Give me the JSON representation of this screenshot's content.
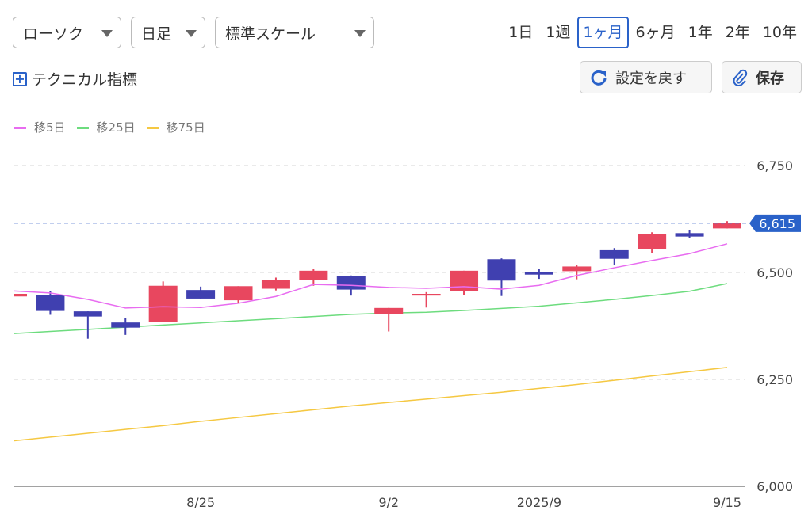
{
  "toolbar": {
    "chart_type": "ローソク",
    "interval": "日足",
    "scale": "標準スケール",
    "periods": [
      "1日",
      "1週",
      "1ヶ月",
      "6ヶ月",
      "1年",
      "2年",
      "10年"
    ],
    "active_period": "1ヶ月",
    "technical_label": "テクニカル指標",
    "reset_label": "設定を戻す",
    "save_label": "保存"
  },
  "colors": {
    "up": "#e8475f",
    "down": "#4040b0",
    "ma5": "#e86cf0",
    "ma25": "#6ddc7e",
    "ma75": "#f5c842",
    "accent": "#2a62c9"
  },
  "chart_data": {
    "type": "candlestick",
    "legend": [
      {
        "name": "移5日",
        "color": "#e86cf0"
      },
      {
        "name": "移25日",
        "color": "#6ddc7e"
      },
      {
        "name": "移75日",
        "color": "#f5c842"
      }
    ],
    "ylim": [
      6000,
      6750
    ],
    "yticks": [
      {
        "value": 6750,
        "label": "6,750"
      },
      {
        "value": 6500,
        "label": "6,500"
      },
      {
        "value": 6250,
        "label": "6,250"
      },
      {
        "value": 6000,
        "label": "6,000"
      }
    ],
    "last_price": {
      "value": 6615,
      "label": "6,615"
    },
    "xticks": [
      {
        "index": 5,
        "label": "8/25"
      },
      {
        "index": 10,
        "label": "9/2"
      },
      {
        "index": 14,
        "label": "2025/9"
      },
      {
        "index": 19,
        "label": "9/15"
      }
    ],
    "candles": [
      {
        "o": 6444,
        "h": 6457,
        "l": 6440,
        "c": 6450
      },
      {
        "o": 6448,
        "h": 6457,
        "l": 6401,
        "c": 6410
      },
      {
        "o": 6409,
        "h": 6409,
        "l": 6345,
        "c": 6397
      },
      {
        "o": 6383,
        "h": 6394,
        "l": 6354,
        "c": 6371
      },
      {
        "o": 6385,
        "h": 6479,
        "l": 6385,
        "c": 6469
      },
      {
        "o": 6459,
        "h": 6467,
        "l": 6439,
        "c": 6439
      },
      {
        "o": 6435,
        "h": 6468,
        "l": 6428,
        "c": 6468
      },
      {
        "o": 6462,
        "h": 6488,
        "l": 6458,
        "c": 6483
      },
      {
        "o": 6483,
        "h": 6509,
        "l": 6469,
        "c": 6504
      },
      {
        "o": 6491,
        "h": 6493,
        "l": 6446,
        "c": 6460
      },
      {
        "o": 6403,
        "h": 6417,
        "l": 6362,
        "c": 6417
      },
      {
        "o": 6446,
        "h": 6454,
        "l": 6418,
        "c": 6450
      },
      {
        "o": 6457,
        "h": 6504,
        "l": 6447,
        "c": 6504
      },
      {
        "o": 6531,
        "h": 6533,
        "l": 6445,
        "c": 6481
      },
      {
        "o": 6500,
        "h": 6509,
        "l": 6485,
        "c": 6495
      },
      {
        "o": 6503,
        "h": 6518,
        "l": 6484,
        "c": 6514
      },
      {
        "o": 6552,
        "h": 6557,
        "l": 6517,
        "c": 6532
      },
      {
        "o": 6554,
        "h": 6594,
        "l": 6546,
        "c": 6589
      },
      {
        "o": 6592,
        "h": 6600,
        "l": 6580,
        "c": 6584
      },
      {
        "o": 6603,
        "h": 6620,
        "l": 6603,
        "c": 6615
      }
    ],
    "ma5": [
      6457,
      6452,
      6437,
      6417,
      6420,
      6418,
      6428,
      6444,
      6472,
      6470,
      6465,
      6463,
      6467,
      6461,
      6470,
      6493,
      6511,
      6528,
      6544,
      6567
    ],
    "ma25": [
      6357,
      6362,
      6367,
      6372,
      6377,
      6382,
      6387,
      6392,
      6397,
      6402,
      6405,
      6407,
      6411,
      6416,
      6421,
      6429,
      6437,
      6446,
      6456,
      6474
    ],
    "ma75": [
      6106,
      6115,
      6124,
      6133,
      6142,
      6152,
      6161,
      6170,
      6179,
      6188,
      6196,
      6204,
      6212,
      6220,
      6229,
      6238,
      6248,
      6258,
      6268,
      6278
    ]
  }
}
